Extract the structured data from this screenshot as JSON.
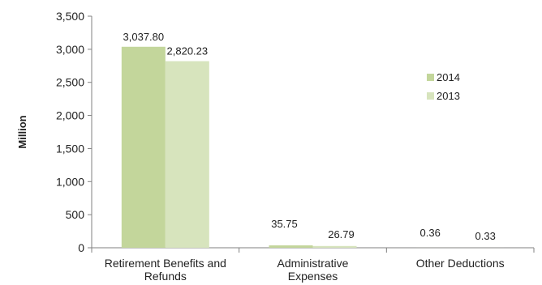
{
  "chart_data": {
    "type": "bar",
    "title": "",
    "xlabel": "",
    "ylabel": "Million",
    "ylim": [
      0,
      3500
    ],
    "yticks": [
      0,
      500,
      1000,
      1500,
      2000,
      2500,
      3000,
      3500
    ],
    "ytick_labels": [
      "0",
      "500",
      "1,000",
      "1,500",
      "2,000",
      "2,500",
      "3,000",
      "3,500"
    ],
    "grid": false,
    "legend_position": "right",
    "categories": [
      [
        "Retirement Benefits and",
        "Refunds"
      ],
      [
        "Administrative",
        "Expenses"
      ],
      [
        "Other Deductions"
      ]
    ],
    "series": [
      {
        "name": "2014",
        "color": "#c3d69b",
        "values": [
          3037.8,
          35.75,
          0.36
        ],
        "labels": [
          "3,037.80",
          "35.75",
          "0.36"
        ]
      },
      {
        "name": "2013",
        "color": "#d7e4bd",
        "values": [
          2820.23,
          26.79,
          0.33
        ],
        "labels": [
          "2,820.23",
          "26.79",
          "0.33"
        ]
      }
    ]
  }
}
